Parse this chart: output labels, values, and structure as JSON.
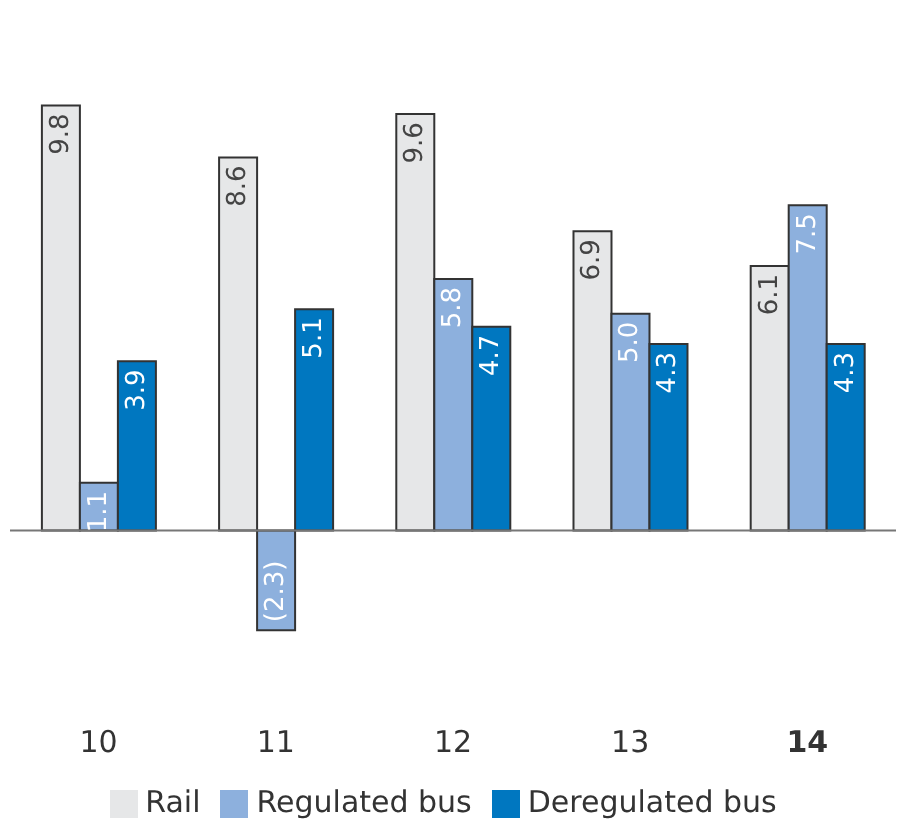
{
  "chart_data": {
    "type": "bar",
    "categories": [
      "10",
      "11",
      "12",
      "13",
      "14"
    ],
    "series": [
      {
        "name": "Rail",
        "color": "#e6e7e8",
        "values": [
          9.8,
          8.6,
          9.6,
          6.9,
          6.1
        ],
        "value_labels": [
          "9.8",
          "8.6",
          "9.6",
          "6.9",
          "6.1"
        ]
      },
      {
        "name": "Regulated bus",
        "color": "#8db0dd",
        "values": [
          1.1,
          -2.3,
          5.8,
          5.0,
          7.5
        ],
        "value_labels": [
          "1.1",
          "(2.3)",
          "5.8",
          "5.0",
          "7.5"
        ]
      },
      {
        "name": "Deregulated bus",
        "color": "#0077c0",
        "values": [
          3.9,
          5.1,
          4.7,
          4.3,
          4.3
        ],
        "value_labels": [
          "3.9",
          "5.1",
          "4.7",
          "4.3",
          "4.3"
        ]
      }
    ],
    "legend": "bottom",
    "grid": false
  }
}
